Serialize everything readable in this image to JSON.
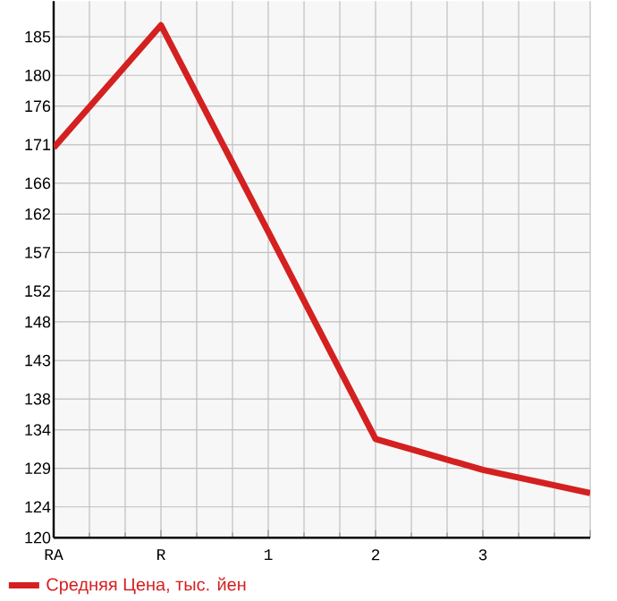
{
  "chart_data": {
    "type": "line",
    "categories": [
      "RA",
      "R",
      "1",
      "2",
      "3",
      null
    ],
    "series": [
      {
        "name": "Средняя Цена, тыс. йен",
        "color": "#d42020",
        "values": [
          170.6,
          186.5,
          159.7,
          132.8,
          128.8,
          125.8
        ]
      }
    ],
    "ylim": [
      120,
      189.64
    ],
    "yticks": [
      120,
      124,
      129,
      134,
      138,
      143,
      148,
      152,
      157,
      162,
      166,
      171,
      176,
      180,
      185
    ],
    "grid": true,
    "legend": "bottom left",
    "marker": "none",
    "line_style": "solid"
  }
}
